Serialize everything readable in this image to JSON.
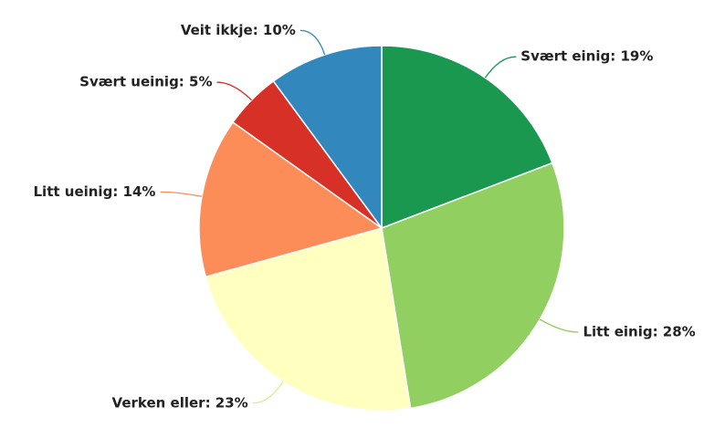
{
  "chart_data": {
    "type": "pie",
    "values": [
      19,
      28,
      23,
      14,
      5,
      10
    ],
    "value_labels": [
      "Svært einig: 19%",
      "Litt einig: 28%",
      "Verken eller: 23%",
      "Litt ueinig: 14%",
      "Svært ueinig: 5%",
      "Veit ikkje: 10%"
    ],
    "colors": [
      "#1a9850",
      "#91cf60",
      "#ffffbf",
      "#fc8d59",
      "#d73027",
      "#3288bd"
    ]
  }
}
